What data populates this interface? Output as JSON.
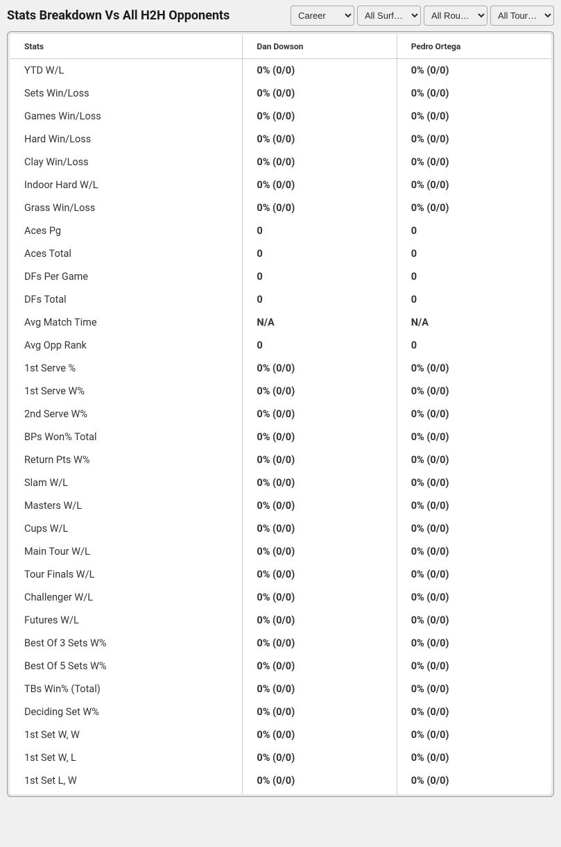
{
  "header": {
    "title": "Stats Breakdown Vs All H2H Opponents"
  },
  "filters": {
    "period": {
      "selected": "Career",
      "options": [
        "Career"
      ]
    },
    "surface": {
      "selected": "All Surf…",
      "options": [
        "All Surf…"
      ]
    },
    "round": {
      "selected": "All Rou…",
      "options": [
        "All Rou…"
      ]
    },
    "tour": {
      "selected": "All Tour…",
      "options": [
        "All Tour…"
      ]
    }
  },
  "table": {
    "columns": [
      "Stats",
      "Dan Dowson",
      "Pedro Ortega"
    ],
    "rows": [
      {
        "stat": "YTD W/L",
        "p1": "0% (0/0)",
        "p2": "0% (0/0)"
      },
      {
        "stat": "Sets Win/Loss",
        "p1": "0% (0/0)",
        "p2": "0% (0/0)"
      },
      {
        "stat": "Games Win/Loss",
        "p1": "0% (0/0)",
        "p2": "0% (0/0)"
      },
      {
        "stat": "Hard Win/Loss",
        "p1": "0% (0/0)",
        "p2": "0% (0/0)"
      },
      {
        "stat": "Clay Win/Loss",
        "p1": "0% (0/0)",
        "p2": "0% (0/0)"
      },
      {
        "stat": "Indoor Hard W/L",
        "p1": "0% (0/0)",
        "p2": "0% (0/0)"
      },
      {
        "stat": "Grass Win/Loss",
        "p1": "0% (0/0)",
        "p2": "0% (0/0)"
      },
      {
        "stat": "Aces Pg",
        "p1": "0",
        "p2": "0"
      },
      {
        "stat": "Aces Total",
        "p1": "0",
        "p2": "0"
      },
      {
        "stat": "DFs Per Game",
        "p1": "0",
        "p2": "0"
      },
      {
        "stat": "DFs Total",
        "p1": "0",
        "p2": "0"
      },
      {
        "stat": "Avg Match Time",
        "p1": "N/A",
        "p2": "N/A"
      },
      {
        "stat": "Avg Opp Rank",
        "p1": "0",
        "p2": "0"
      },
      {
        "stat": "1st Serve %",
        "p1": "0% (0/0)",
        "p2": "0% (0/0)"
      },
      {
        "stat": "1st Serve W%",
        "p1": "0% (0/0)",
        "p2": "0% (0/0)"
      },
      {
        "stat": "2nd Serve W%",
        "p1": "0% (0/0)",
        "p2": "0% (0/0)"
      },
      {
        "stat": "BPs Won% Total",
        "p1": "0% (0/0)",
        "p2": "0% (0/0)"
      },
      {
        "stat": "Return Pts W%",
        "p1": "0% (0/0)",
        "p2": "0% (0/0)"
      },
      {
        "stat": "Slam W/L",
        "p1": "0% (0/0)",
        "p2": "0% (0/0)"
      },
      {
        "stat": "Masters W/L",
        "p1": "0% (0/0)",
        "p2": "0% (0/0)"
      },
      {
        "stat": "Cups W/L",
        "p1": "0% (0/0)",
        "p2": "0% (0/0)"
      },
      {
        "stat": "Main Tour W/L",
        "p1": "0% (0/0)",
        "p2": "0% (0/0)"
      },
      {
        "stat": "Tour Finals W/L",
        "p1": "0% (0/0)",
        "p2": "0% (0/0)"
      },
      {
        "stat": "Challenger W/L",
        "p1": "0% (0/0)",
        "p2": "0% (0/0)"
      },
      {
        "stat": "Futures W/L",
        "p1": "0% (0/0)",
        "p2": "0% (0/0)"
      },
      {
        "stat": "Best Of 3 Sets W%",
        "p1": "0% (0/0)",
        "p2": "0% (0/0)"
      },
      {
        "stat": "Best Of 5 Sets W%",
        "p1": "0% (0/0)",
        "p2": "0% (0/0)"
      },
      {
        "stat": "TBs Win% (Total)",
        "p1": "0% (0/0)",
        "p2": "0% (0/0)"
      },
      {
        "stat": "Deciding Set W%",
        "p1": "0% (0/0)",
        "p2": "0% (0/0)"
      },
      {
        "stat": "1st Set W, W",
        "p1": "0% (0/0)",
        "p2": "0% (0/0)"
      },
      {
        "stat": "1st Set W, L",
        "p1": "0% (0/0)",
        "p2": "0% (0/0)"
      },
      {
        "stat": "1st Set L, W",
        "p1": "0% (0/0)",
        "p2": "0% (0/0)"
      }
    ]
  },
  "colors": {
    "page_bg": "#f0f0f0",
    "table_bg": "#ffffff",
    "border": "#bbbbbb",
    "text": "#333333",
    "header_text": "#1a1a1a"
  }
}
